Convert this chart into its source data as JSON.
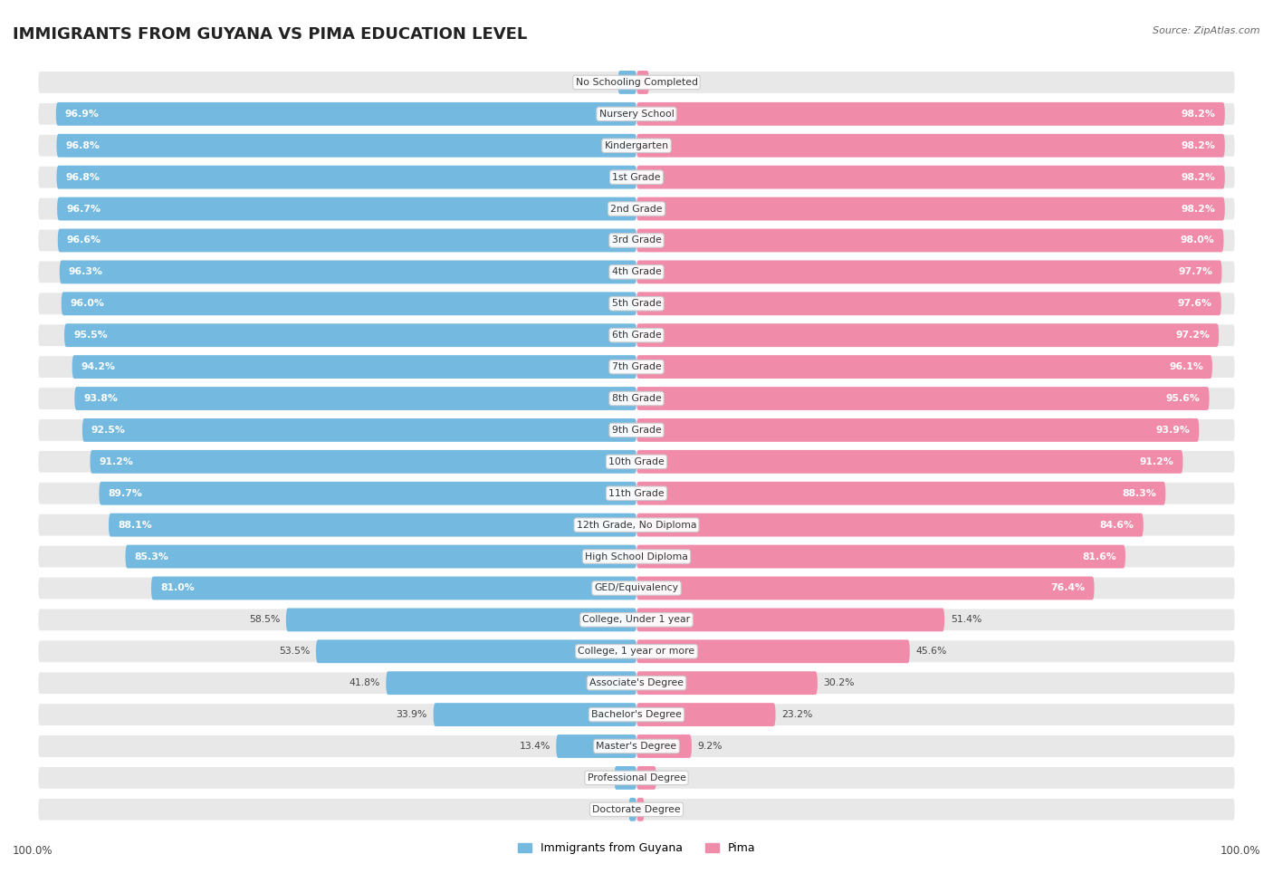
{
  "title": "IMMIGRANTS FROM GUYANA VS PIMA EDUCATION LEVEL",
  "source": "Source: ZipAtlas.com",
  "categories": [
    "No Schooling Completed",
    "Nursery School",
    "Kindergarten",
    "1st Grade",
    "2nd Grade",
    "3rd Grade",
    "4th Grade",
    "5th Grade",
    "6th Grade",
    "7th Grade",
    "8th Grade",
    "9th Grade",
    "10th Grade",
    "11th Grade",
    "12th Grade, No Diploma",
    "High School Diploma",
    "GED/Equivalency",
    "College, Under 1 year",
    "College, 1 year or more",
    "Associate's Degree",
    "Bachelor's Degree",
    "Master's Degree",
    "Professional Degree",
    "Doctorate Degree"
  ],
  "guyana_values": [
    3.1,
    96.9,
    96.8,
    96.8,
    96.7,
    96.6,
    96.3,
    96.0,
    95.5,
    94.2,
    93.8,
    92.5,
    91.2,
    89.7,
    88.1,
    85.3,
    81.0,
    58.5,
    53.5,
    41.8,
    33.9,
    13.4,
    3.7,
    1.3
  ],
  "pima_values": [
    2.1,
    98.2,
    98.2,
    98.2,
    98.2,
    98.0,
    97.7,
    97.6,
    97.2,
    96.1,
    95.6,
    93.9,
    91.2,
    88.3,
    84.6,
    81.6,
    76.4,
    51.4,
    45.6,
    30.2,
    23.2,
    9.2,
    3.3,
    1.3
  ],
  "guyana_color": "#74b9e0",
  "pima_color": "#f08baa",
  "background_color": "#ffffff",
  "row_bg_color": "#e8e8e8",
  "label_box_color": "#ffffff",
  "max_val": 100.0,
  "bar_height": 0.72,
  "label_threshold": 65,
  "legend_guyana": "Immigrants from Guyana",
  "legend_pima": "Pima"
}
